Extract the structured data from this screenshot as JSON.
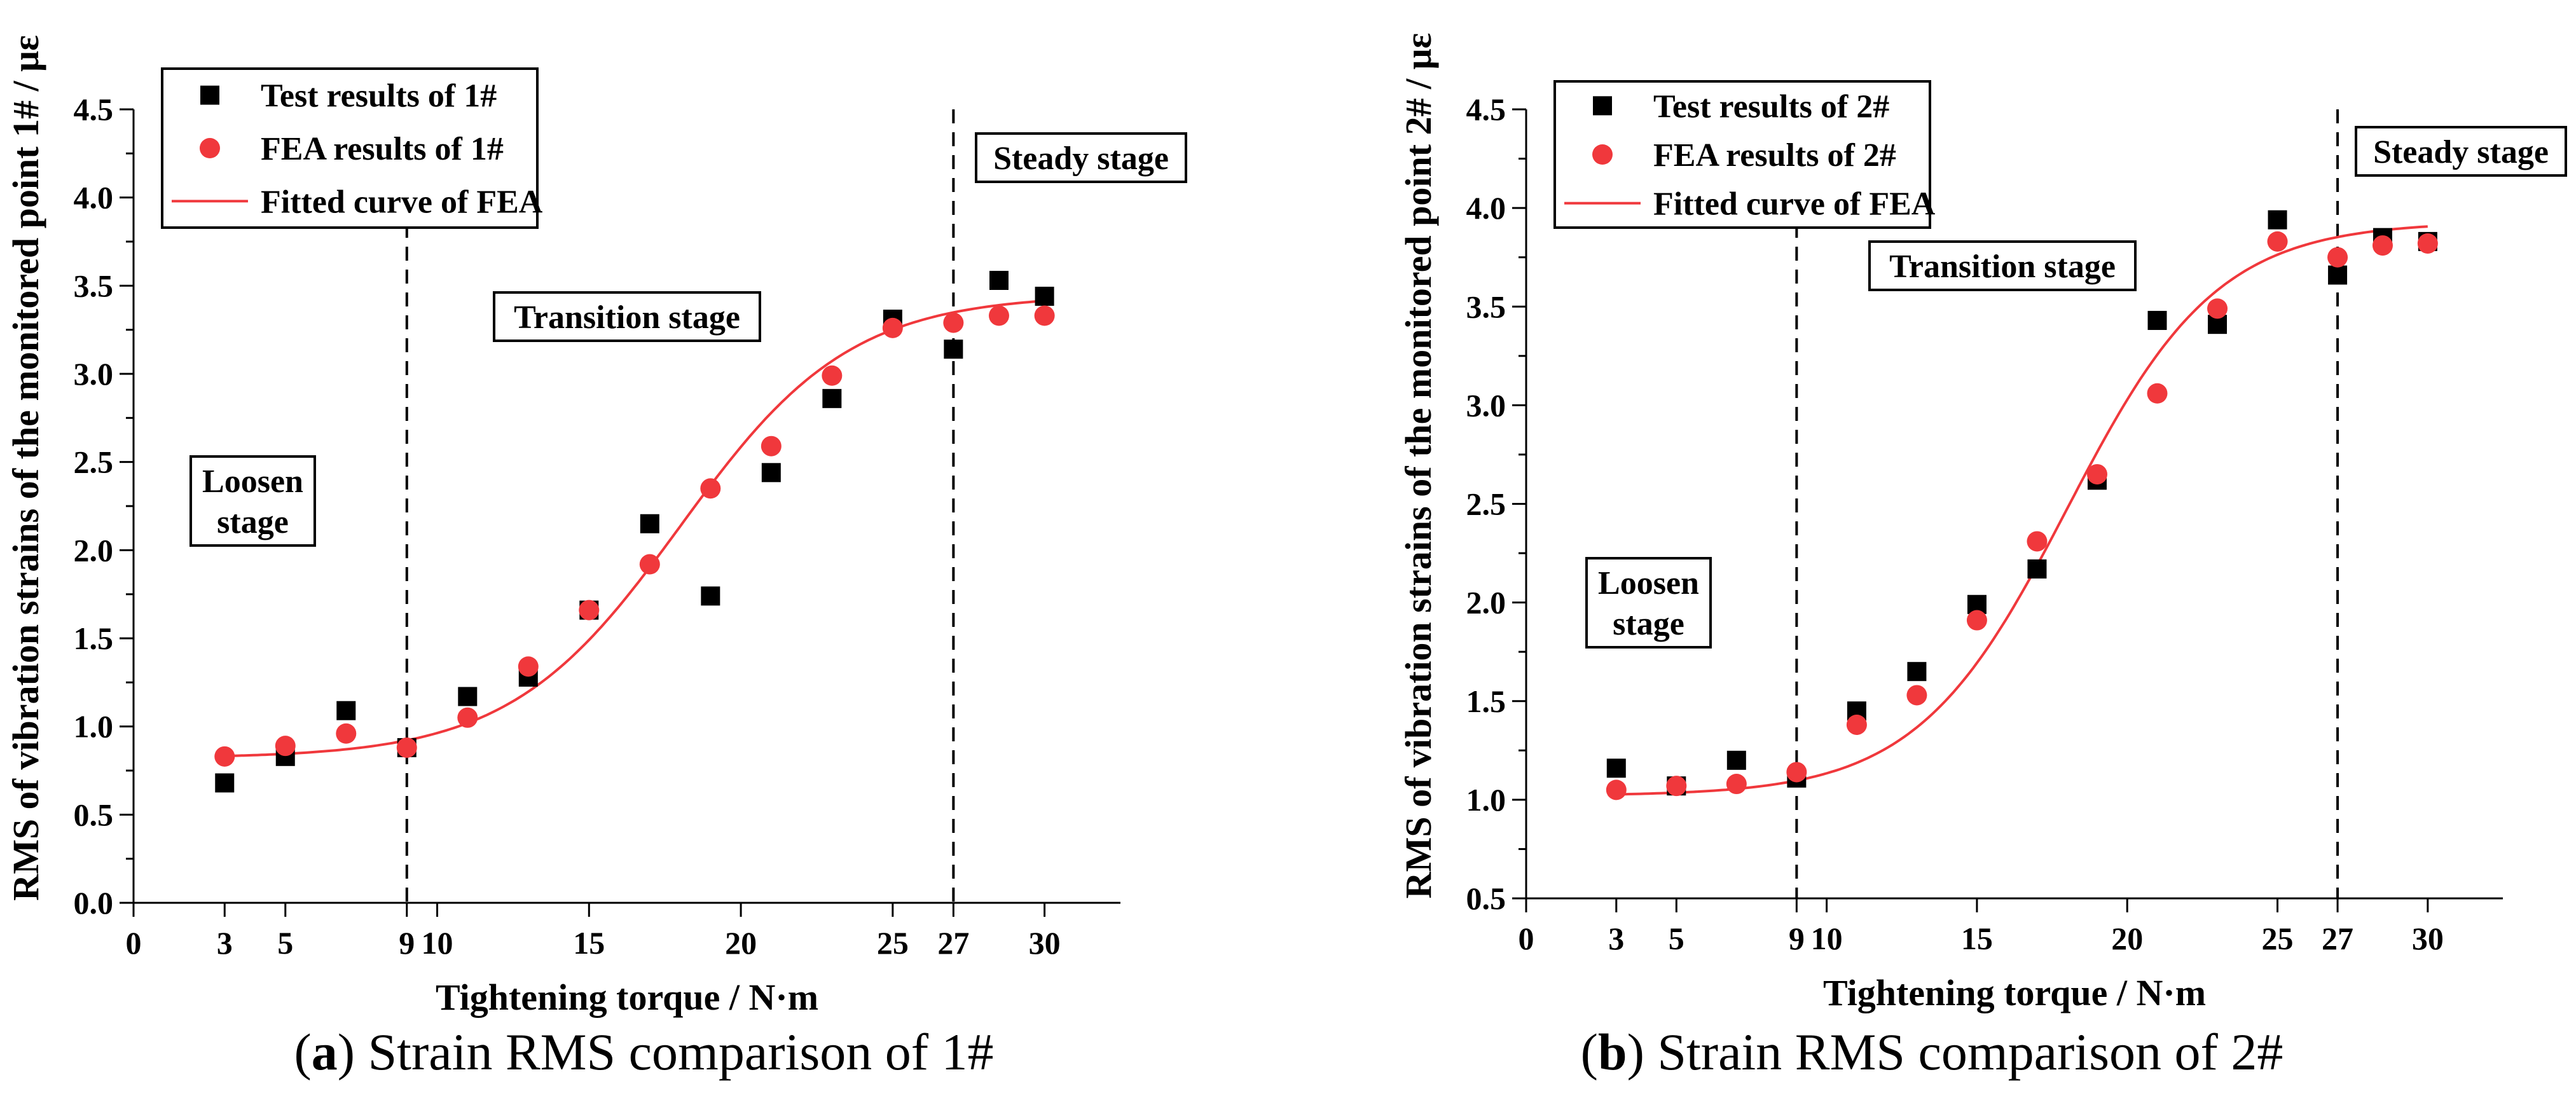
{
  "chart_data": [
    {
      "type": "scatter",
      "title": "",
      "xlabel": "Tightening torque / N·m",
      "ylabel": "RMS of vibration strains of the monitored point 1# / με",
      "xlim": [
        0,
        32.5
      ],
      "ylim": [
        0,
        4.5
      ],
      "x_ticks": [
        "0",
        "3",
        "5",
        "9",
        "10",
        "15",
        "20",
        "25",
        "27",
        "30"
      ],
      "y_ticks": [
        "0.0",
        "0.5",
        "1.0",
        "1.5",
        "2.0",
        "2.5",
        "3.0",
        "3.5",
        "4.0",
        "4.5"
      ],
      "legend": {
        "placement": "top-left",
        "entries": [
          "Test results of 1#",
          "FEA results of 1#",
          "Fitted curve of FEA"
        ]
      },
      "series": [
        {
          "name": "Test results of 1#",
          "marker": "square",
          "color": "#000000",
          "x": [
            3,
            5,
            7,
            9,
            11,
            13,
            15,
            17,
            19,
            21,
            23,
            25,
            27,
            28.5,
            30
          ],
          "y": [
            0.68,
            0.83,
            1.09,
            0.88,
            1.17,
            1.28,
            1.66,
            2.15,
            1.74,
            2.44,
            2.86,
            3.31,
            3.14,
            3.53,
            3.44
          ]
        },
        {
          "name": "FEA results of 1#",
          "marker": "circle",
          "color": "#f0383c",
          "x": [
            3,
            5,
            7,
            9,
            11,
            13,
            15,
            17,
            19,
            21,
            23,
            25,
            27,
            28.5,
            30
          ],
          "y": [
            0.83,
            0.89,
            0.96,
            0.88,
            1.05,
            1.34,
            1.66,
            1.92,
            2.35,
            2.59,
            2.99,
            3.26,
            3.29,
            3.33,
            3.33
          ]
        },
        {
          "name": "Fitted curve of FEA",
          "type": "line",
          "color": "#f0383c",
          "model": "boltzmann",
          "A1": 0.82,
          "A2": 3.45,
          "x0": 18,
          "dx": 2.8,
          "xrange": [
            3,
            30
          ]
        }
      ],
      "vlines": [
        9,
        27
      ],
      "stages": [
        {
          "label": "Loosen stage",
          "lines": [
            "Loosen",
            "stage"
          ]
        },
        {
          "label": "Transition stage",
          "lines": [
            "Transition stage"
          ]
        },
        {
          "label": "Steady stage",
          "lines": [
            "Steady stage"
          ]
        }
      ]
    },
    {
      "type": "scatter",
      "title": "",
      "xlabel": "Tightening torque / N·m",
      "ylabel": "RMS of vibration strains of the monitored point 2# / με",
      "xlim": [
        0,
        32.5
      ],
      "ylim": [
        0.5,
        4.5
      ],
      "x_ticks": [
        "0",
        "3",
        "5",
        "9",
        "10",
        "15",
        "20",
        "25",
        "27",
        "30"
      ],
      "y_ticks": [
        "0.5",
        "1.0",
        "1.5",
        "2.0",
        "2.5",
        "3.0",
        "3.5",
        "4.0",
        "4.5"
      ],
      "legend": {
        "placement": "top-left",
        "entries": [
          "Test results of 2#",
          "FEA results of 2#",
          "Fitted curve of FEA"
        ]
      },
      "series": [
        {
          "name": "Test results of 2#",
          "marker": "square",
          "color": "#000000",
          "x": [
            3,
            5,
            7,
            9,
            11,
            13,
            15,
            17,
            19,
            21,
            23,
            25,
            27,
            28.5,
            30
          ],
          "y": [
            1.16,
            1.07,
            1.2,
            1.11,
            1.45,
            1.65,
            1.99,
            2.17,
            2.62,
            3.43,
            3.41,
            3.94,
            3.66,
            3.85,
            3.83
          ]
        },
        {
          "name": "FEA results of 2#",
          "marker": "circle",
          "color": "#f0383c",
          "x": [
            3,
            5,
            7,
            9,
            11,
            13,
            15,
            17,
            19,
            21,
            23,
            25,
            27,
            28.5,
            30
          ],
          "y": [
            1.05,
            1.07,
            1.08,
            1.14,
            1.38,
            1.53,
            1.91,
            2.31,
            2.65,
            3.06,
            3.49,
            3.83,
            3.75,
            3.81,
            3.82
          ]
        },
        {
          "name": "Fitted curve of FEA",
          "type": "line",
          "color": "#f0383c",
          "model": "boltzmann",
          "A1": 1.02,
          "A2": 3.93,
          "x0": 18,
          "dx": 2.5,
          "xrange": [
            3,
            30
          ]
        }
      ],
      "vlines": [
        9,
        27
      ],
      "stages": [
        {
          "label": "Loosen stage",
          "lines": [
            "Loosen",
            "stage"
          ]
        },
        {
          "label": "Transition stage",
          "lines": [
            "Transition stage"
          ]
        },
        {
          "label": "Steady stage",
          "lines": [
            "Steady stage"
          ]
        }
      ]
    }
  ],
  "captions": {
    "a": {
      "letter": "a",
      "text": "Strain RMS comparison of 1#"
    },
    "b": {
      "letter": "b",
      "text": "Strain RMS comparison of 2#"
    }
  }
}
